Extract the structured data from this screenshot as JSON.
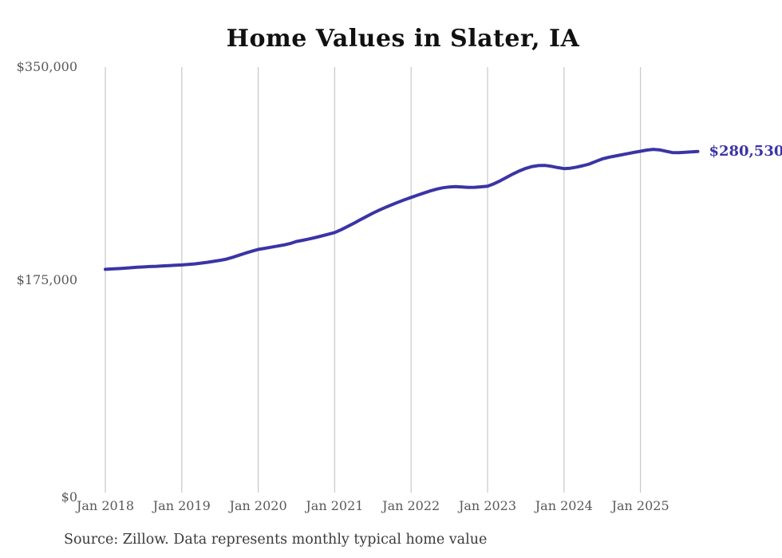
{
  "page": {
    "background_color": "#ffffff"
  },
  "header": {
    "title": "Home Values in Slater, IA"
  },
  "footer": {
    "source_note": "Source: Zillow. Data represents monthly typical home value"
  },
  "colors": {
    "line": "#3b34a5",
    "grid": "#cccccc",
    "axis_text": "#595959",
    "title_text": "#111111",
    "source_text": "#3b3b3b",
    "end_label_text": "#3b34a5"
  },
  "chart_data": {
    "type": "line",
    "title": "Home Values in Slater, IA",
    "xlabel": "",
    "ylabel": "",
    "grid": "vertical-only",
    "legend_position": "none",
    "ylim": [
      0,
      350000
    ],
    "y_ticks": [
      {
        "label": "$0",
        "value": 0
      },
      {
        "label": "$175,000",
        "value": 175000
      },
      {
        "label": "$350,000",
        "value": 350000
      }
    ],
    "x_ticks": [
      "Jan 2018",
      "Jan 2019",
      "Jan 2020",
      "Jan 2021",
      "Jan 2022",
      "Jan 2023",
      "Jan 2024",
      "Jan 2025"
    ],
    "end_label": "$280,530",
    "end_value": 280530,
    "x": [
      "2018-01",
      "2018-02",
      "2018-03",
      "2018-04",
      "2018-05",
      "2018-06",
      "2018-07",
      "2018-08",
      "2018-09",
      "2018-10",
      "2018-11",
      "2018-12",
      "2019-01",
      "2019-02",
      "2019-03",
      "2019-04",
      "2019-05",
      "2019-06",
      "2019-07",
      "2019-08",
      "2019-09",
      "2019-10",
      "2019-11",
      "2019-12",
      "2020-01",
      "2020-02",
      "2020-03",
      "2020-04",
      "2020-05",
      "2020-06",
      "2020-07",
      "2020-08",
      "2020-09",
      "2020-10",
      "2020-11",
      "2020-12",
      "2021-01",
      "2021-02",
      "2021-03",
      "2021-04",
      "2021-05",
      "2021-06",
      "2021-07",
      "2021-08",
      "2021-09",
      "2021-10",
      "2021-11",
      "2021-12",
      "2022-01",
      "2022-02",
      "2022-03",
      "2022-04",
      "2022-05",
      "2022-06",
      "2022-07",
      "2022-08",
      "2022-09",
      "2022-10",
      "2022-11",
      "2022-12",
      "2023-01",
      "2023-02",
      "2023-03",
      "2023-04",
      "2023-05",
      "2023-06",
      "2023-07",
      "2023-08",
      "2023-09",
      "2023-10",
      "2023-11",
      "2023-12",
      "2024-01",
      "2024-02",
      "2024-03",
      "2024-04",
      "2024-05",
      "2024-06",
      "2024-07",
      "2024-08",
      "2024-09",
      "2024-10",
      "2024-11",
      "2024-12",
      "2025-01",
      "2025-02",
      "2025-03",
      "2025-04",
      "2025-05",
      "2025-06",
      "2025-07",
      "2025-08",
      "2025-09",
      "2025-10"
    ],
    "series": [
      {
        "name": "Typical home value",
        "values": [
          183600,
          183900,
          184200,
          184500,
          184900,
          185300,
          185600,
          185900,
          186100,
          186400,
          186700,
          187000,
          187200,
          187600,
          188100,
          188700,
          189400,
          190200,
          191000,
          192000,
          193500,
          195200,
          196900,
          198500,
          200000,
          200900,
          201800,
          202700,
          203600,
          204800,
          206500,
          207500,
          208600,
          209800,
          211100,
          212500,
          213900,
          216200,
          218800,
          221500,
          224300,
          227100,
          229800,
          232300,
          234600,
          236800,
          238900,
          240900,
          242800,
          244600,
          246400,
          248100,
          249600,
          250700,
          251400,
          251600,
          251400,
          251000,
          251100,
          251500,
          252000,
          254000,
          256500,
          259300,
          262100,
          264600,
          266700,
          268200,
          269000,
          269100,
          268400,
          267300,
          266500,
          266800,
          267700,
          268900,
          270300,
          272400,
          274400,
          275700,
          276800,
          277800,
          278800,
          279800,
          280700,
          281700,
          282300,
          281900,
          280800,
          279700,
          279600,
          279900,
          280250,
          280530
        ]
      }
    ]
  }
}
